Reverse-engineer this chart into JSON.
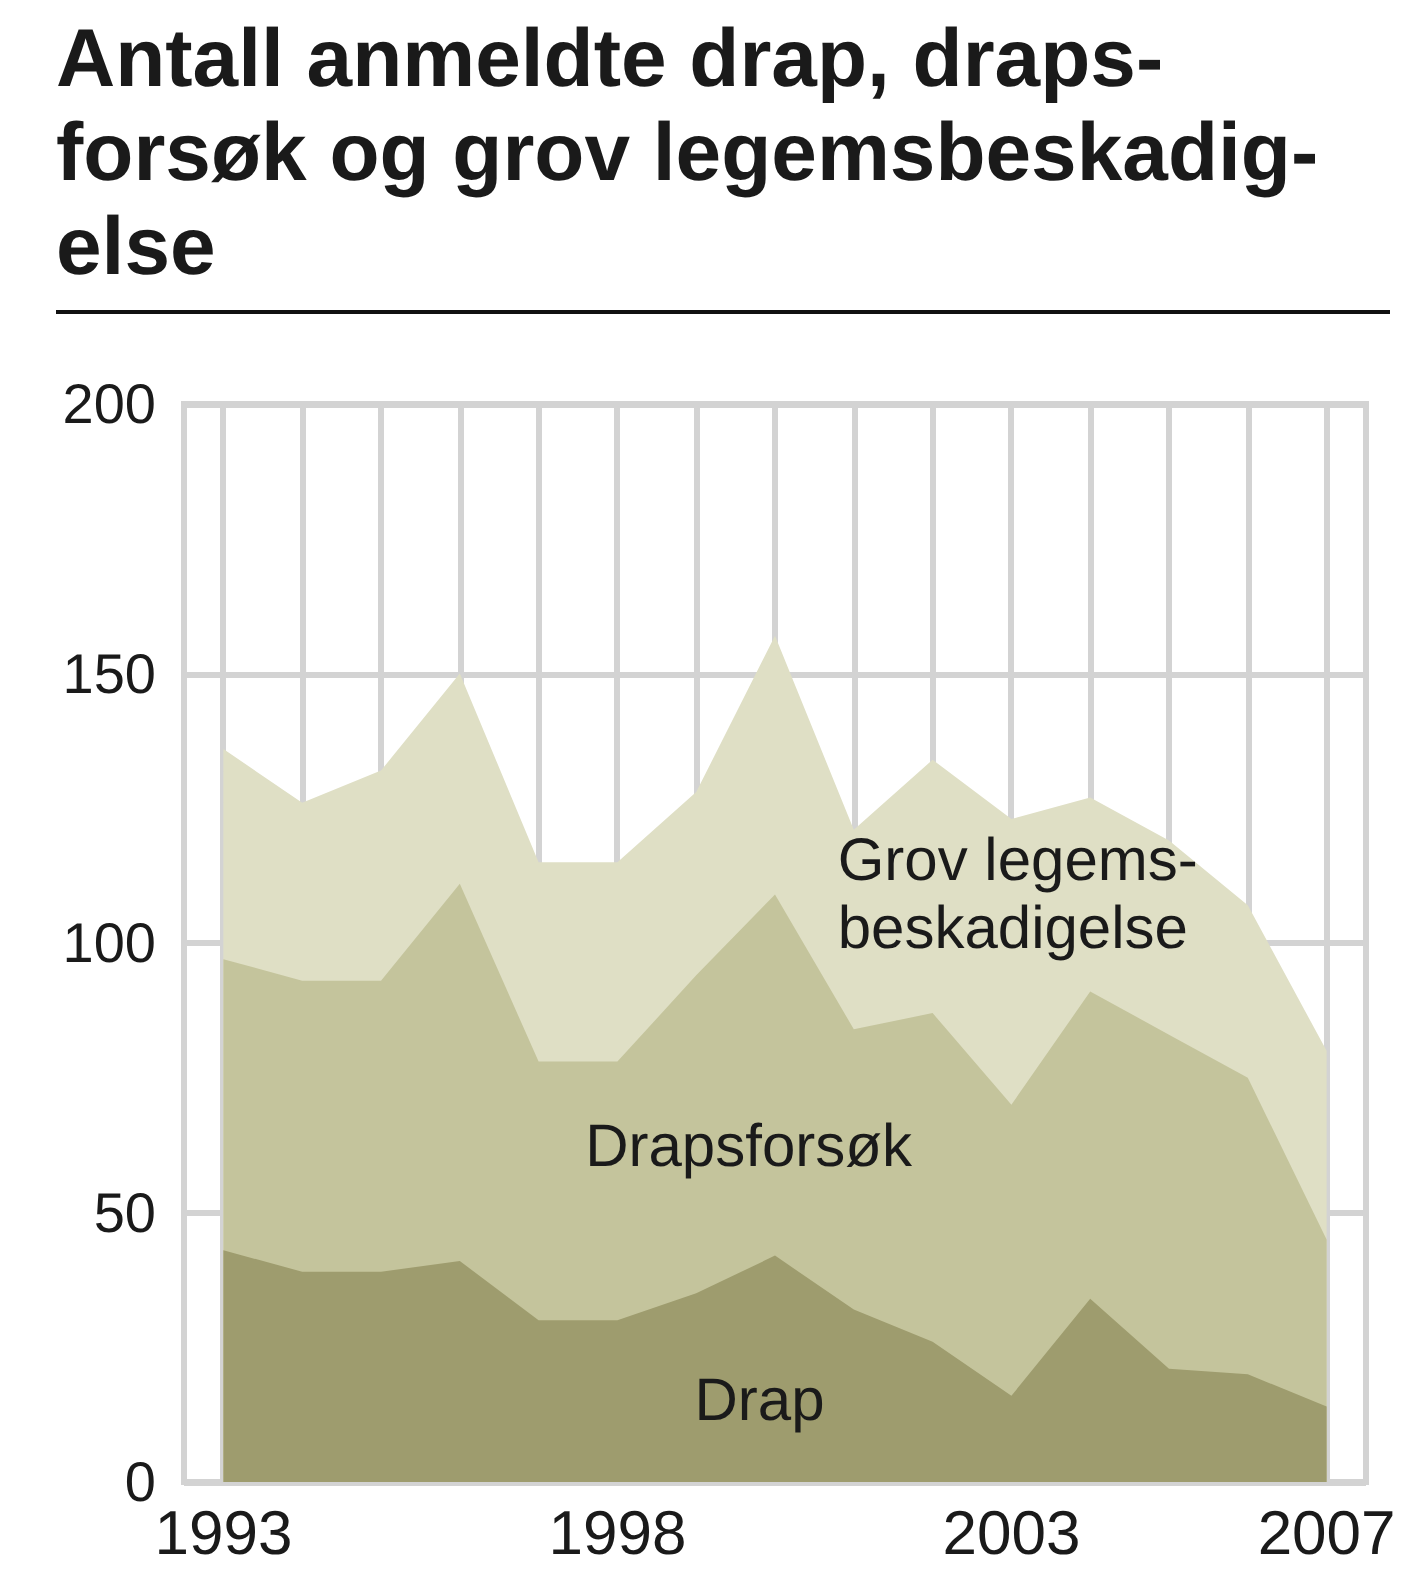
{
  "chart_data": {
    "type": "area",
    "title": "Antall anmeldte drap, draps-\nforsøk og grov legemsbeskadig-\nelse",
    "x": [
      1993,
      1994,
      1995,
      1996,
      1997,
      1998,
      1999,
      2000,
      2001,
      2002,
      2003,
      2004,
      2005,
      2006,
      2007
    ],
    "series": [
      {
        "name": "Drap",
        "color": "#9e9c6e",
        "values": [
          43,
          39,
          39,
          41,
          30,
          30,
          35,
          42,
          32,
          26,
          16,
          34,
          21,
          20,
          14
        ]
      },
      {
        "name": "Drapsforsøk",
        "color": "#c4c49c",
        "values": [
          54,
          54,
          54,
          70,
          48,
          48,
          59,
          67,
          52,
          61,
          54,
          57,
          62,
          55,
          31
        ]
      },
      {
        "name": "Grov legems-\nbeskadigelse",
        "color": "#dfdfc5",
        "values": [
          39,
          33,
          39,
          39,
          37,
          37,
          34,
          48,
          37,
          47,
          53,
          36,
          36,
          32,
          35
        ]
      }
    ],
    "stacked": true,
    "xlim": [
      1992.5,
      2007.5
    ],
    "xticks": [
      1993,
      {
        "value": 1994,
        "label": null
      },
      {
        "value": 1995,
        "label": null
      },
      {
        "value": 1996,
        "label": null
      },
      {
        "value": 1997,
        "label": null
      },
      1998,
      {
        "value": 1999,
        "label": null
      },
      {
        "value": 2000,
        "label": null
      },
      {
        "value": 2001,
        "label": null
      },
      {
        "value": 2002,
        "label": null
      },
      2003,
      {
        "value": 2004,
        "label": null
      },
      {
        "value": 2005,
        "label": null
      },
      {
        "value": 2006,
        "label": null
      },
      2007
    ],
    "ylim": [
      0,
      200
    ],
    "yticks": [
      0,
      50,
      100,
      150,
      200
    ],
    "grid": true
  }
}
